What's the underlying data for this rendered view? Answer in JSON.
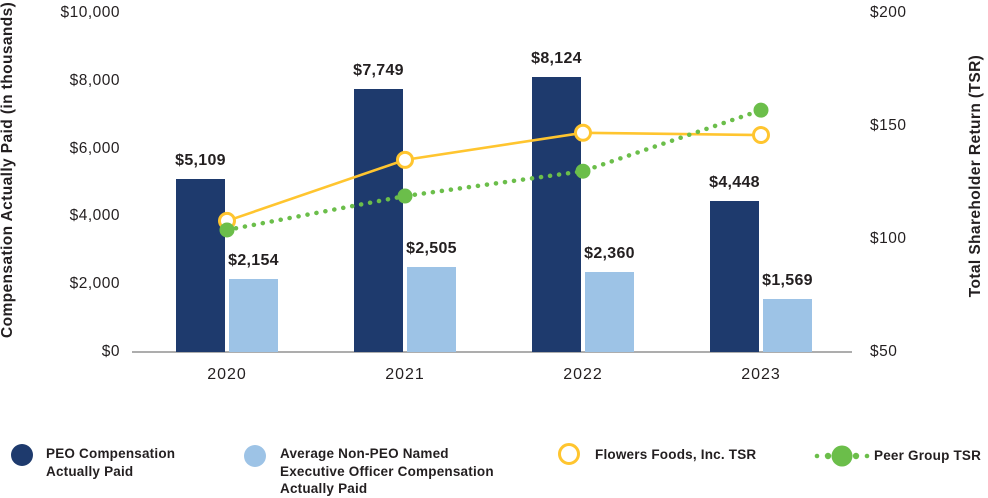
{
  "chart_data": {
    "type": "combo-bar-line",
    "categories": [
      "2020",
      "2021",
      "2022",
      "2023"
    ],
    "bar_series": [
      {
        "name": "PEO Compensation Actually Paid",
        "color": "#1E3A6D",
        "values": [
          5109,
          7749,
          8124,
          4448
        ],
        "labels": [
          "$5,109",
          "$7,749",
          "$8,124",
          "$4,448"
        ]
      },
      {
        "name": "Average Non-PEO Named Executive Officer Compensation Actually Paid",
        "color": "#9DC3E6",
        "values": [
          2154,
          2505,
          2360,
          1569
        ],
        "labels": [
          "$2,154",
          "$2,505",
          "$2,360",
          "$1,569"
        ]
      }
    ],
    "line_series": [
      {
        "name": "Flowers Foods, Inc. TSR",
        "color": "#FFC52F",
        "style": "solid",
        "marker": "open-circle",
        "values": [
          108,
          135,
          147,
          146
        ]
      },
      {
        "name": "Peer Group TSR",
        "color": "#6BBE4A",
        "style": "dotted",
        "marker": "filled-circle",
        "values": [
          104,
          119,
          130,
          157
        ]
      }
    ],
    "left_axis": {
      "title": "Compensation Actually Paid (in thousands)",
      "ticks": [
        "$10,000",
        "$8,000",
        "$6,000",
        "$4,000",
        "$2,000",
        "$0"
      ],
      "tick_values": [
        10000,
        8000,
        6000,
        4000,
        2000,
        0
      ],
      "range": [
        0,
        10000
      ]
    },
    "right_axis": {
      "title": "Total Shareholder Return (TSR)",
      "ticks": [
        "$200",
        "$150",
        "$100",
        "$50"
      ],
      "tick_values": [
        200,
        150,
        100,
        50
      ],
      "range": [
        50,
        200
      ]
    },
    "grid": false,
    "legend_position": "bottom"
  },
  "legend": {
    "items": [
      {
        "swatch": "navy-filled-circle",
        "color": "#1E3A6D",
        "lines": [
          "PEO Compensation",
          "Actually Paid"
        ]
      },
      {
        "swatch": "lightblue-filled-circle",
        "color": "#9DC3E6",
        "lines": [
          "Average Non-PEO Named",
          "Executive Officer Compensation",
          "Actually Paid"
        ]
      },
      {
        "swatch": "yellow-open-circle",
        "color": "#FFC52F",
        "lines": [
          "Flowers Foods, Inc. TSR"
        ]
      },
      {
        "swatch": "green-dotted-circle",
        "color": "#6BBE4A",
        "lines": [
          "Peer Group TSR"
        ]
      }
    ]
  },
  "colors": {
    "peo_bar": "#1E3A6D",
    "non_peo_bar": "#9DC3E6",
    "flowers_line": "#FFC52F",
    "peer_line": "#6BBE4A",
    "axis_line": "#ADADAD",
    "text": "#231F20"
  }
}
